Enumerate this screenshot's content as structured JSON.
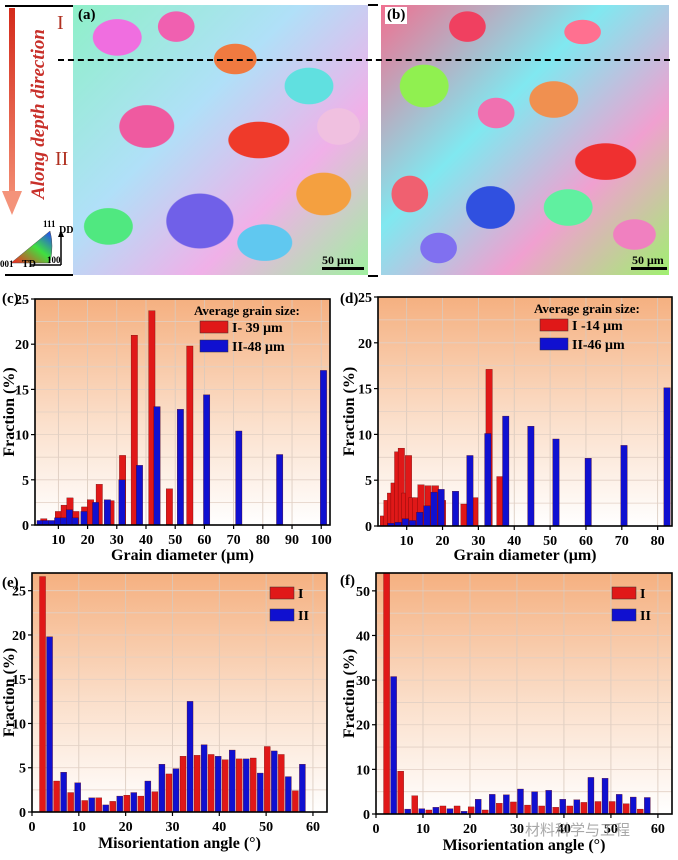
{
  "top": {
    "direction_label": "Along depth direction",
    "region_I": "I",
    "region_II": "II",
    "panel_a": "(a)",
    "panel_b": "(b)",
    "scale_bar_a": "50 μm",
    "scale_bar_b": "50 μm",
    "ipf_key": {
      "corner_111": "111",
      "corner_001": "001",
      "corner_100": "100",
      "axis_dd": "DD",
      "axis_td": "TD"
    },
    "colors": {
      "arrow": "#e0503a",
      "roman": "#b03020"
    }
  },
  "chart_data": [
    {
      "id": "c",
      "panel_label": "(c)",
      "type": "bar",
      "xlabel": "Grain diameter (μm)",
      "ylabel": "Fraction (%)",
      "xlim": [
        2,
        103
      ],
      "ylim": [
        0,
        25
      ],
      "xticks": [
        10,
        20,
        30,
        40,
        50,
        60,
        70,
        80,
        90,
        100
      ],
      "yticks": [
        0,
        5,
        10,
        15,
        20,
        25
      ],
      "grid": true,
      "legend_title": "Average grain size:",
      "legend_position": "top-right",
      "bar_width": 2.2,
      "series": [
        {
          "name": "I- 39 μm",
          "color": "#e01818",
          "x": [
            5,
            7,
            10,
            12,
            14,
            16,
            19,
            21,
            24,
            28,
            32,
            36,
            42,
            48,
            55
          ],
          "values": [
            0.7,
            0.4,
            1.5,
            2.2,
            3.0,
            1.5,
            2.0,
            2.8,
            4.5,
            2.7,
            7.7,
            21.0,
            23.7,
            4.0,
            19.8
          ]
        },
        {
          "name": "II-48 μm",
          "color": "#1010d0",
          "x": [
            3,
            5,
            7,
            9,
            11,
            13,
            15,
            18,
            22,
            26,
            31,
            37,
            43,
            51,
            60,
            71,
            85,
            100
          ],
          "values": [
            0.5,
            0.5,
            0.5,
            0.8,
            0.8,
            1.7,
            0.8,
            1.5,
            2.5,
            2.8,
            5.0,
            6.6,
            13.1,
            12.8,
            14.4,
            10.4,
            7.8,
            17.1
          ]
        }
      ]
    },
    {
      "id": "d",
      "panel_label": "(d)",
      "type": "bar",
      "xlabel": "Grain diameter (μm)",
      "ylabel": "Fraction (%)",
      "xlim": [
        2,
        84
      ],
      "ylim": [
        0,
        25
      ],
      "xticks": [
        10,
        20,
        30,
        40,
        50,
        60,
        70,
        80
      ],
      "yticks": [
        0,
        5,
        10,
        15,
        20,
        25
      ],
      "grid": true,
      "legend_title": "Average grain size:",
      "legend_position": "top-right",
      "bar_width": 1.8,
      "series": [
        {
          "name": "I -14 μm",
          "color": "#e01818",
          "x": [
            3.5,
            4.5,
            5.5,
            6.5,
            7.5,
            8.5,
            9.5,
            10.5,
            11.5,
            12.5,
            14,
            16,
            18,
            20,
            26,
            29,
            33,
            36
          ],
          "values": [
            1.1,
            2.8,
            3.6,
            4.7,
            8.1,
            8.5,
            3.6,
            7.7,
            3.1,
            3.1,
            4.5,
            4.4,
            4.4,
            2.8,
            2.4,
            3.1,
            17.1,
            5.4
          ]
        },
        {
          "name": "II-46 μm",
          "color": "#1010d0",
          "x": [
            5,
            7,
            9,
            11,
            13,
            15,
            17,
            19,
            23,
            27,
            32,
            37,
            44,
            51,
            60,
            70,
            82
          ],
          "values": [
            0.3,
            0.4,
            0.8,
            0.6,
            1.5,
            2.2,
            3.7,
            4.0,
            3.8,
            7.7,
            10.1,
            12.0,
            10.9,
            9.5,
            7.4,
            8.8,
            15.1
          ]
        }
      ]
    },
    {
      "id": "e",
      "panel_label": "(e)",
      "type": "bar",
      "xlabel": "Misorientation angle (°)",
      "ylabel": "Fraction (%)",
      "xlim": [
        0,
        63
      ],
      "ylim": [
        0,
        27
      ],
      "xticks": [
        0,
        10,
        20,
        30,
        40,
        50,
        60
      ],
      "yticks": [
        0,
        5,
        10,
        15,
        20,
        25
      ],
      "grid": true,
      "legend_position": "top-right",
      "categories": [
        3,
        6,
        9,
        12,
        15,
        18,
        21,
        24,
        27,
        30,
        33,
        36,
        39,
        42,
        45,
        48,
        51,
        54,
        57,
        60
      ],
      "series": [
        {
          "name": "I",
          "color": "#e01818",
          "values": [
            26.6,
            3.5,
            2.2,
            1.3,
            1.6,
            1.2,
            1.9,
            1.8,
            2.3,
            4.3,
            6.3,
            6.4,
            6.5,
            5.9,
            6.0,
            6.1,
            7.4,
            6.5,
            2.4,
            0
          ]
        },
        {
          "name": "II",
          "color": "#1010d0",
          "values": [
            19.8,
            4.5,
            3.3,
            1.6,
            0.8,
            1.8,
            2.2,
            3.5,
            5.4,
            4.9,
            12.5,
            7.6,
            6.3,
            7.0,
            6.0,
            4.4,
            6.9,
            4.0,
            5.4,
            0
          ]
        }
      ]
    },
    {
      "id": "f",
      "panel_label": "(f)",
      "type": "bar",
      "xlabel": "Misorientation angle (°)",
      "ylabel": "Fraction (%)",
      "xlim": [
        0,
        63
      ],
      "ylim": [
        0,
        54
      ],
      "xticks": [
        0,
        10,
        20,
        30,
        40,
        50,
        60
      ],
      "yticks": [
        0,
        10,
        20,
        30,
        40,
        50
      ],
      "grid": true,
      "legend_position": "top-right",
      "categories": [
        3,
        6,
        9,
        12,
        15,
        18,
        21,
        24,
        27,
        30,
        33,
        36,
        39,
        42,
        45,
        48,
        51,
        54,
        57,
        60
      ],
      "series": [
        {
          "name": "I",
          "color": "#e01818",
          "values": [
            54.0,
            9.6,
            4.1,
            0.9,
            1.8,
            1.8,
            1.6,
            0.9,
            2.4,
            2.7,
            2.0,
            1.8,
            1.5,
            1.8,
            2.6,
            2.8,
            2.8,
            2.3,
            1.1,
            0
          ]
        },
        {
          "name": "II",
          "color": "#1010d0",
          "values": [
            30.8,
            1.1,
            1.2,
            1.5,
            1.2,
            0.6,
            3.3,
            4.4,
            4.3,
            5.6,
            5.0,
            5.3,
            3.3,
            3.2,
            8.2,
            8.0,
            4.4,
            3.8,
            3.7,
            0
          ]
        }
      ]
    }
  ],
  "watermark": "材料科学与工程"
}
